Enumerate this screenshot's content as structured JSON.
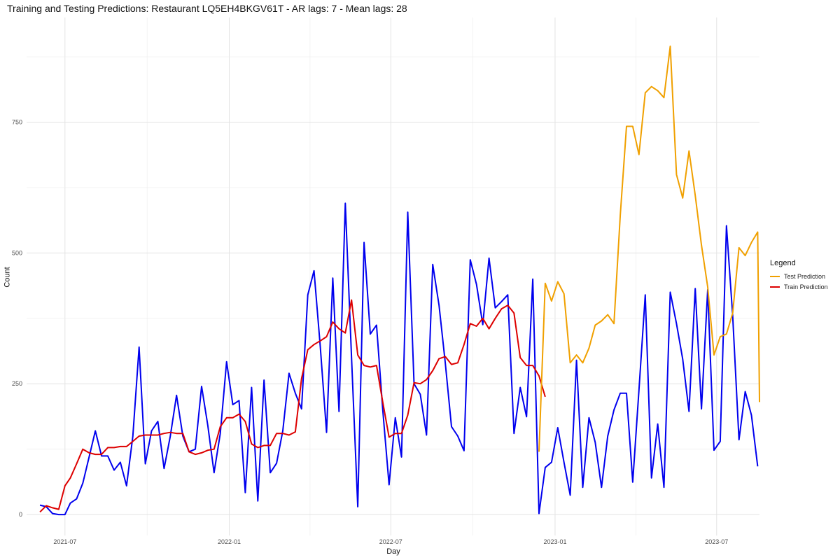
{
  "chart_data": {
    "type": "line",
    "title": "Training and Testing Predictions: Restaurant LQ5EH4BKGV61T - AR lags: 7 - Mean lags: 28",
    "xlabel": "Day",
    "ylabel": "Count",
    "x_ticks": [
      "2021-07",
      "2022-01",
      "2022-07",
      "2023-01",
      "2023-07"
    ],
    "y_ticks": [
      "0",
      "250",
      "500",
      "750"
    ],
    "xlim": [
      "2021-05-19",
      "2023-08-18"
    ],
    "ylim": [
      -40,
      950
    ],
    "grid": true,
    "legend_title": "Legend",
    "legend_position": "right",
    "series": [
      {
        "key": "actual",
        "color": "#0000ee",
        "points": [
          [
            "2021-06-03",
            18
          ],
          [
            "2021-06-10",
            15
          ],
          [
            "2021-06-17",
            2
          ],
          [
            "2021-06-24",
            0
          ],
          [
            "2021-07-01",
            0
          ],
          [
            "2021-07-07",
            22
          ],
          [
            "2021-07-14",
            30
          ],
          [
            "2021-07-21",
            60
          ],
          [
            "2021-07-28",
            110
          ],
          [
            "2021-08-04",
            160
          ],
          [
            "2021-08-11",
            112
          ],
          [
            "2021-08-18",
            112
          ],
          [
            "2021-08-25",
            85
          ],
          [
            "2021-09-01",
            100
          ],
          [
            "2021-09-08",
            55
          ],
          [
            "2021-09-15",
            150
          ],
          [
            "2021-09-22",
            320
          ],
          [
            "2021-09-29",
            97
          ],
          [
            "2021-10-06",
            160
          ],
          [
            "2021-10-13",
            178
          ],
          [
            "2021-10-20",
            88
          ],
          [
            "2021-10-27",
            150
          ],
          [
            "2021-11-03",
            228
          ],
          [
            "2021-11-10",
            150
          ],
          [
            "2021-11-17",
            120
          ],
          [
            "2021-11-24",
            125
          ],
          [
            "2021-12-01",
            245
          ],
          [
            "2021-12-08",
            170
          ],
          [
            "2021-12-15",
            80
          ],
          [
            "2021-12-22",
            155
          ],
          [
            "2021-12-29",
            292
          ],
          [
            "2022-01-05",
            210
          ],
          [
            "2022-01-12",
            218
          ],
          [
            "2022-01-19",
            42
          ],
          [
            "2022-01-26",
            243
          ],
          [
            "2022-02-02",
            26
          ],
          [
            "2022-02-09",
            257
          ],
          [
            "2022-02-16",
            80
          ],
          [
            "2022-02-23",
            98
          ],
          [
            "2022-03-02",
            160
          ],
          [
            "2022-03-09",
            270
          ],
          [
            "2022-03-16",
            232
          ],
          [
            "2022-03-23",
            202
          ],
          [
            "2022-03-30",
            420
          ],
          [
            "2022-04-06",
            466
          ],
          [
            "2022-04-13",
            320
          ],
          [
            "2022-04-20",
            157
          ],
          [
            "2022-04-27",
            452
          ],
          [
            "2022-05-04",
            197
          ],
          [
            "2022-05-11",
            595
          ],
          [
            "2022-05-18",
            300
          ],
          [
            "2022-05-25",
            15
          ],
          [
            "2022-06-01",
            520
          ],
          [
            "2022-06-08",
            345
          ],
          [
            "2022-06-15",
            362
          ],
          [
            "2022-06-22",
            200
          ],
          [
            "2022-06-29",
            57
          ],
          [
            "2022-07-06",
            185
          ],
          [
            "2022-07-13",
            110
          ],
          [
            "2022-07-20",
            578
          ],
          [
            "2022-07-27",
            250
          ],
          [
            "2022-08-03",
            230
          ],
          [
            "2022-08-10",
            152
          ],
          [
            "2022-08-17",
            478
          ],
          [
            "2022-08-24",
            400
          ],
          [
            "2022-08-31",
            290
          ],
          [
            "2022-09-07",
            168
          ],
          [
            "2022-09-14",
            150
          ],
          [
            "2022-09-21",
            122
          ],
          [
            "2022-09-28",
            487
          ],
          [
            "2022-10-05",
            440
          ],
          [
            "2022-10-12",
            363
          ],
          [
            "2022-10-19",
            490
          ],
          [
            "2022-10-26",
            395
          ],
          [
            "2022-11-02",
            407
          ],
          [
            "2022-11-09",
            420
          ],
          [
            "2022-11-16",
            155
          ],
          [
            "2022-11-23",
            243
          ],
          [
            "2022-11-30",
            187
          ],
          [
            "2022-12-07",
            450
          ],
          [
            "2022-12-14",
            2
          ],
          [
            "2022-12-21",
            90
          ],
          [
            "2022-12-28",
            100
          ],
          [
            "2023-01-04",
            166
          ],
          [
            "2023-01-11",
            100
          ],
          [
            "2023-01-18",
            37
          ],
          [
            "2023-01-25",
            295
          ],
          [
            "2023-02-01",
            52
          ],
          [
            "2023-02-08",
            185
          ],
          [
            "2023-02-15",
            138
          ],
          [
            "2023-02-22",
            52
          ],
          [
            "2023-03-01",
            150
          ],
          [
            "2023-03-08",
            200
          ],
          [
            "2023-03-15",
            232
          ],
          [
            "2023-03-22",
            232
          ],
          [
            "2023-03-29",
            62
          ],
          [
            "2023-04-05",
            238
          ],
          [
            "2023-04-12",
            420
          ],
          [
            "2023-04-19",
            70
          ],
          [
            "2023-04-26",
            173
          ],
          [
            "2023-05-03",
            52
          ],
          [
            "2023-05-10",
            425
          ],
          [
            "2023-05-17",
            365
          ],
          [
            "2023-05-24",
            297
          ],
          [
            "2023-05-31",
            197
          ],
          [
            "2023-06-07",
            432
          ],
          [
            "2023-06-14",
            202
          ],
          [
            "2023-06-21",
            430
          ],
          [
            "2023-06-28",
            123
          ],
          [
            "2023-07-05",
            140
          ],
          [
            "2023-07-12",
            552
          ],
          [
            "2023-07-19",
            380
          ],
          [
            "2023-07-26",
            143
          ],
          [
            "2023-08-02",
            235
          ],
          [
            "2023-08-09",
            190
          ],
          [
            "2023-08-16",
            92
          ]
        ]
      },
      {
        "key": "train",
        "name": "Train Prediction",
        "color": "#dd0000",
        "points": [
          [
            "2021-06-03",
            5
          ],
          [
            "2021-06-10",
            17
          ],
          [
            "2021-06-17",
            13
          ],
          [
            "2021-06-24",
            10
          ],
          [
            "2021-07-01",
            55
          ],
          [
            "2021-07-07",
            70
          ],
          [
            "2021-07-14",
            97
          ],
          [
            "2021-07-21",
            125
          ],
          [
            "2021-07-28",
            118
          ],
          [
            "2021-08-04",
            115
          ],
          [
            "2021-08-11",
            115
          ],
          [
            "2021-08-18",
            128
          ],
          [
            "2021-08-25",
            128
          ],
          [
            "2021-09-01",
            130
          ],
          [
            "2021-09-08",
            130
          ],
          [
            "2021-09-15",
            140
          ],
          [
            "2021-09-22",
            150
          ],
          [
            "2021-09-29",
            152
          ],
          [
            "2021-10-06",
            152
          ],
          [
            "2021-10-13",
            152
          ],
          [
            "2021-10-20",
            155
          ],
          [
            "2021-10-27",
            157
          ],
          [
            "2021-11-03",
            155
          ],
          [
            "2021-11-10",
            155
          ],
          [
            "2021-11-17",
            120
          ],
          [
            "2021-11-24",
            115
          ],
          [
            "2021-12-01",
            118
          ],
          [
            "2021-12-08",
            123
          ],
          [
            "2021-12-15",
            125
          ],
          [
            "2021-12-22",
            168
          ],
          [
            "2021-12-29",
            185
          ],
          [
            "2022-01-05",
            185
          ],
          [
            "2022-01-12",
            192
          ],
          [
            "2022-01-19",
            178
          ],
          [
            "2022-01-26",
            135
          ],
          [
            "2022-02-02",
            128
          ],
          [
            "2022-02-09",
            132
          ],
          [
            "2022-02-16",
            132
          ],
          [
            "2022-02-23",
            155
          ],
          [
            "2022-03-02",
            155
          ],
          [
            "2022-03-09",
            152
          ],
          [
            "2022-03-16",
            158
          ],
          [
            "2022-03-23",
            260
          ],
          [
            "2022-03-30",
            315
          ],
          [
            "2022-04-06",
            325
          ],
          [
            "2022-04-13",
            332
          ],
          [
            "2022-04-20",
            340
          ],
          [
            "2022-04-27",
            368
          ],
          [
            "2022-05-04",
            355
          ],
          [
            "2022-05-11",
            347
          ],
          [
            "2022-05-18",
            410
          ],
          [
            "2022-05-25",
            305
          ],
          [
            "2022-06-01",
            285
          ],
          [
            "2022-06-08",
            282
          ],
          [
            "2022-06-15",
            285
          ],
          [
            "2022-06-22",
            215
          ],
          [
            "2022-06-29",
            148
          ],
          [
            "2022-07-06",
            155
          ],
          [
            "2022-07-13",
            155
          ],
          [
            "2022-07-20",
            190
          ],
          [
            "2022-07-27",
            252
          ],
          [
            "2022-08-03",
            250
          ],
          [
            "2022-08-10",
            258
          ],
          [
            "2022-08-17",
            275
          ],
          [
            "2022-08-24",
            298
          ],
          [
            "2022-08-31",
            302
          ],
          [
            "2022-09-07",
            287
          ],
          [
            "2022-09-14",
            290
          ],
          [
            "2022-09-21",
            325
          ],
          [
            "2022-09-28",
            365
          ],
          [
            "2022-10-05",
            360
          ],
          [
            "2022-10-12",
            375
          ],
          [
            "2022-10-19",
            355
          ],
          [
            "2022-10-26",
            375
          ],
          [
            "2022-11-02",
            393
          ],
          [
            "2022-11-09",
            400
          ],
          [
            "2022-11-16",
            385
          ],
          [
            "2022-11-23",
            300
          ],
          [
            "2022-11-30",
            285
          ],
          [
            "2022-12-07",
            285
          ],
          [
            "2022-12-14",
            265
          ],
          [
            "2022-12-21",
            225
          ]
        ]
      },
      {
        "key": "test",
        "name": "Test Prediction",
        "color": "#f0a000",
        "points": [
          [
            "2022-12-14",
            120
          ],
          [
            "2022-12-21",
            442
          ],
          [
            "2022-12-28",
            408
          ],
          [
            "2023-01-04",
            445
          ],
          [
            "2023-01-11",
            422
          ],
          [
            "2023-01-18",
            290
          ],
          [
            "2023-01-25",
            305
          ],
          [
            "2023-02-01",
            290
          ],
          [
            "2023-02-08",
            318
          ],
          [
            "2023-02-15",
            362
          ],
          [
            "2023-02-22",
            370
          ],
          [
            "2023-03-01",
            382
          ],
          [
            "2023-03-08",
            365
          ],
          [
            "2023-03-15",
            572
          ],
          [
            "2023-03-22",
            742
          ],
          [
            "2023-03-29",
            742
          ],
          [
            "2023-04-05",
            688
          ],
          [
            "2023-04-12",
            806
          ],
          [
            "2023-04-19",
            818
          ],
          [
            "2023-04-26",
            810
          ],
          [
            "2023-05-03",
            797
          ],
          [
            "2023-05-10",
            895
          ],
          [
            "2023-05-17",
            650
          ],
          [
            "2023-05-24",
            605
          ],
          [
            "2023-05-31",
            695
          ],
          [
            "2023-06-07",
            610
          ],
          [
            "2023-06-14",
            515
          ],
          [
            "2023-06-21",
            435
          ],
          [
            "2023-06-28",
            305
          ],
          [
            "2023-07-05",
            340
          ],
          [
            "2023-07-12",
            345
          ],
          [
            "2023-07-19",
            385
          ],
          [
            "2023-07-26",
            510
          ],
          [
            "2023-08-02",
            495
          ],
          [
            "2023-08-09",
            520
          ],
          [
            "2023-08-16",
            540
          ],
          [
            "2023-08-18",
            215
          ]
        ]
      }
    ]
  }
}
